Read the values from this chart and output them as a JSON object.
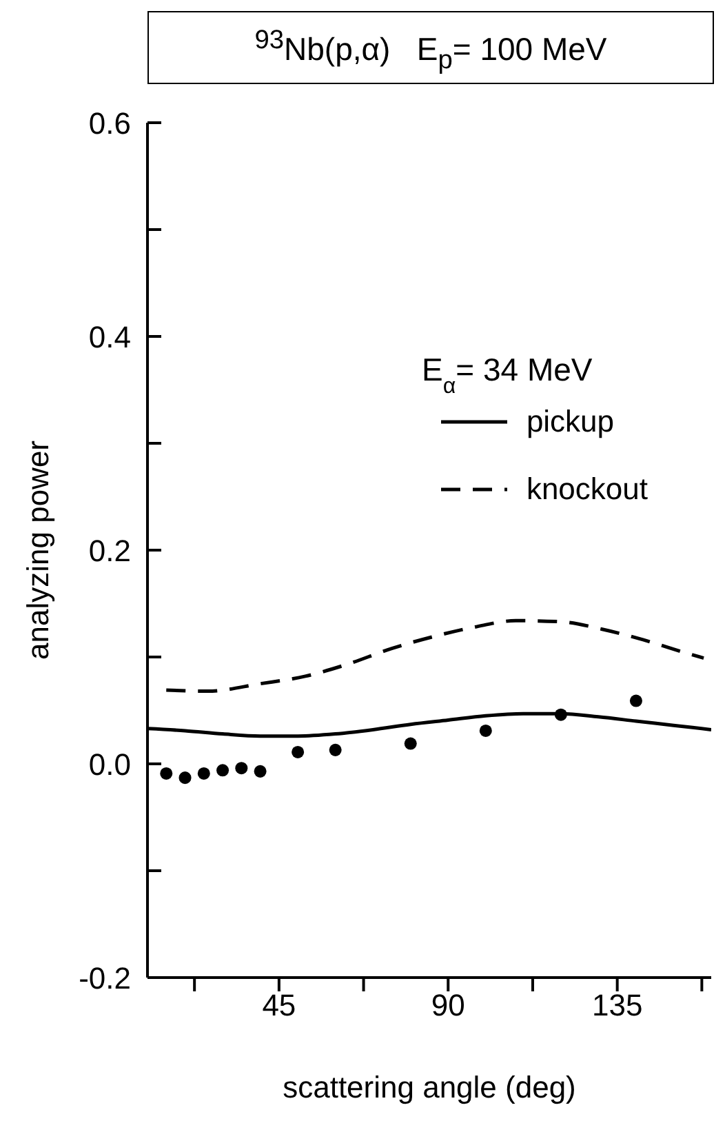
{
  "chart_data": {
    "type": "line",
    "title": "$^{93}$Nb(p,α)   E$_{p}$= 100 MeV",
    "xlabel": "scattering angle (deg)",
    "ylabel": "analyzing power",
    "annotations": [
      "E$_{α}$= 34 MeV"
    ],
    "xlim": [
      10,
      160
    ],
    "xticks": [
      {
        "value": 22.5,
        "label": null
      },
      45,
      {
        "value": 67.5,
        "label": null
      },
      90,
      {
        "value": 112.5,
        "label": null
      },
      135,
      {
        "value": 157.5,
        "label": null
      }
    ],
    "ylim": [
      -0.2,
      0.6
    ],
    "yticks": [
      -0.2,
      {
        "value": -0.1,
        "label": null
      },
      {
        "value": 0,
        "label": "0.0"
      },
      {
        "value": 0.1,
        "label": null
      },
      0.2,
      {
        "value": 0.3,
        "label": null
      },
      0.4,
      {
        "value": 0.5,
        "label": null
      },
      0.6
    ],
    "legend": "top right",
    "grid": false,
    "series": [
      {
        "name": "pickup",
        "type": "line",
        "color": "#000000",
        "line_style": "solid",
        "marker": "none",
        "x": [
          10,
          20,
          30,
          40,
          50,
          60,
          70,
          80,
          90,
          100,
          110,
          120,
          130,
          140,
          150,
          160
        ],
        "values": [
          0.033,
          0.031,
          0.028,
          0.026,
          0.026,
          0.028,
          0.032,
          0.037,
          0.041,
          0.045,
          0.047,
          0.047,
          0.044,
          0.04,
          0.036,
          0.032
        ]
      },
      {
        "name": "knockout",
        "type": "line",
        "color": "#000000",
        "line_style": "dashed",
        "marker": "none",
        "x": [
          15,
          26,
          40,
          52,
          63,
          75,
          86,
          97,
          108,
          120,
          131,
          142,
          154,
          158
        ],
        "values": [
          0.069,
          0.068,
          0.075,
          0.082,
          0.093,
          0.108,
          0.119,
          0.128,
          0.134,
          0.133,
          0.126,
          0.116,
          0.103,
          0.099
        ]
      },
      {
        "type": "scatter",
        "color": "#000000",
        "marker": "circle",
        "x": [
          15,
          20,
          25,
          30,
          35,
          40,
          50,
          60,
          80,
          100,
          120,
          140
        ],
        "values": [
          -0.009,
          -0.013,
          -0.009,
          -0.006,
          -0.004,
          -0.007,
          0.011,
          0.013,
          0.019,
          0.031,
          0.046,
          0.059
        ]
      }
    ]
  }
}
